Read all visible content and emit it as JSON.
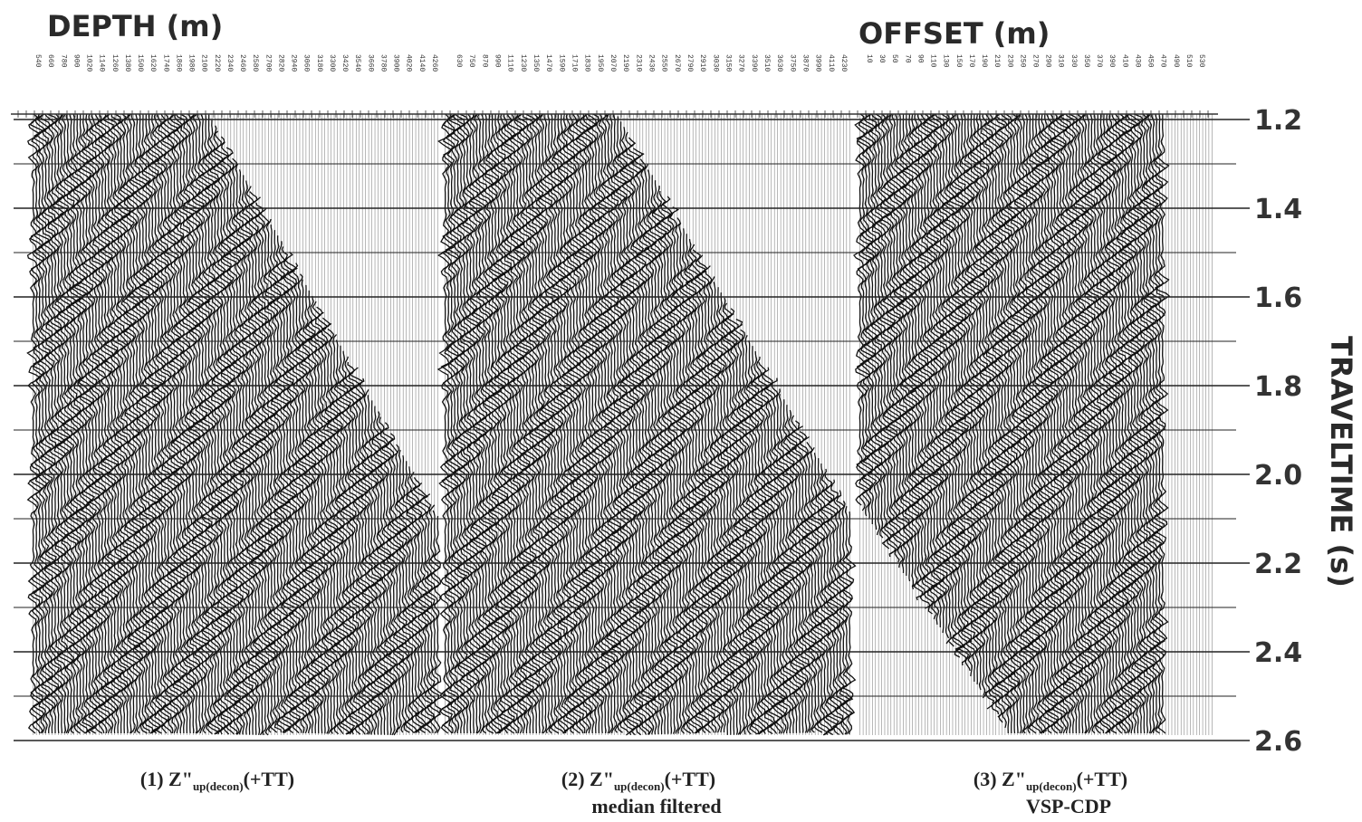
{
  "titles": {
    "depth": "DEPTH (m)",
    "offset": "OFFSET (m)",
    "traveltime": "TRAVELTIME (s)"
  },
  "panels": [
    {
      "labels": [
        "540",
        "660",
        "780",
        "900",
        "1020",
        "1140",
        "1260",
        "1380",
        "1500",
        "1620",
        "1740",
        "1860",
        "1980",
        "2100",
        "2220",
        "2340",
        "2460",
        "2580",
        "2700",
        "2820",
        "2940",
        "3060",
        "3180",
        "3300",
        "3420",
        "3540",
        "3660",
        "3780",
        "3900",
        "4020",
        "4140",
        "4260"
      ],
      "caption": {
        "prefix": "(1)  Z\"",
        "sub": "up(decon)",
        "suffix": "(+TT)"
      }
    },
    {
      "labels": [
        "630",
        "750",
        "870",
        "990",
        "1110",
        "1230",
        "1350",
        "1470",
        "1590",
        "1710",
        "1830",
        "1950",
        "2070",
        "2190",
        "2310",
        "2430",
        "2550",
        "2670",
        "2790",
        "2910",
        "3030",
        "3150",
        "3270",
        "3390",
        "3510",
        "3630",
        "3750",
        "3870",
        "3990",
        "4110",
        "4230"
      ],
      "caption": {
        "prefix": "(2)  Z\"",
        "sub": "up(decon)",
        "suffix": "(+TT)",
        "line2": "median filtered"
      }
    },
    {
      "labels": [
        "10",
        "30",
        "50",
        "70",
        "90",
        "110",
        "130",
        "150",
        "170",
        "190",
        "210",
        "230",
        "250",
        "270",
        "290",
        "310",
        "330",
        "350",
        "370",
        "390",
        "410",
        "430",
        "450",
        "470",
        "490",
        "510",
        "530"
      ],
      "caption": {
        "prefix": "(3)  Z\"",
        "sub": "up(decon)",
        "suffix": "(+TT)",
        "line2": "VSP-CDP"
      }
    }
  ],
  "time_labels": [
    "1.2",
    "1.4",
    "1.6",
    "1.8",
    "2.0",
    "2.2",
    "2.4",
    "2.6"
  ]
}
